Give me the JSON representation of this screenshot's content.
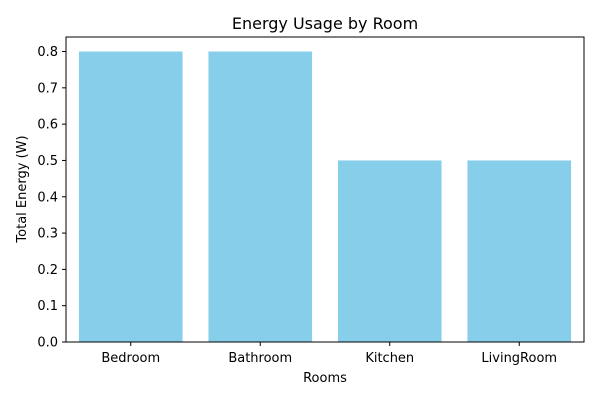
{
  "chart_data": {
    "type": "bar",
    "title": "Energy Usage by Room",
    "xlabel": "Rooms",
    "ylabel": "Total Energy (W)",
    "categories": [
      "Bedroom",
      "Bathroom",
      "Kitchen",
      "LivingRoom"
    ],
    "values": [
      0.8,
      0.8,
      0.5,
      0.5
    ],
    "ylim": [
      0,
      0.84
    ],
    "yticks": [
      "0.0",
      "0.1",
      "0.2",
      "0.3",
      "0.4",
      "0.5",
      "0.6",
      "0.7",
      "0.8"
    ],
    "bar_color": "#87ceeb",
    "grid": false,
    "legend": "none"
  }
}
